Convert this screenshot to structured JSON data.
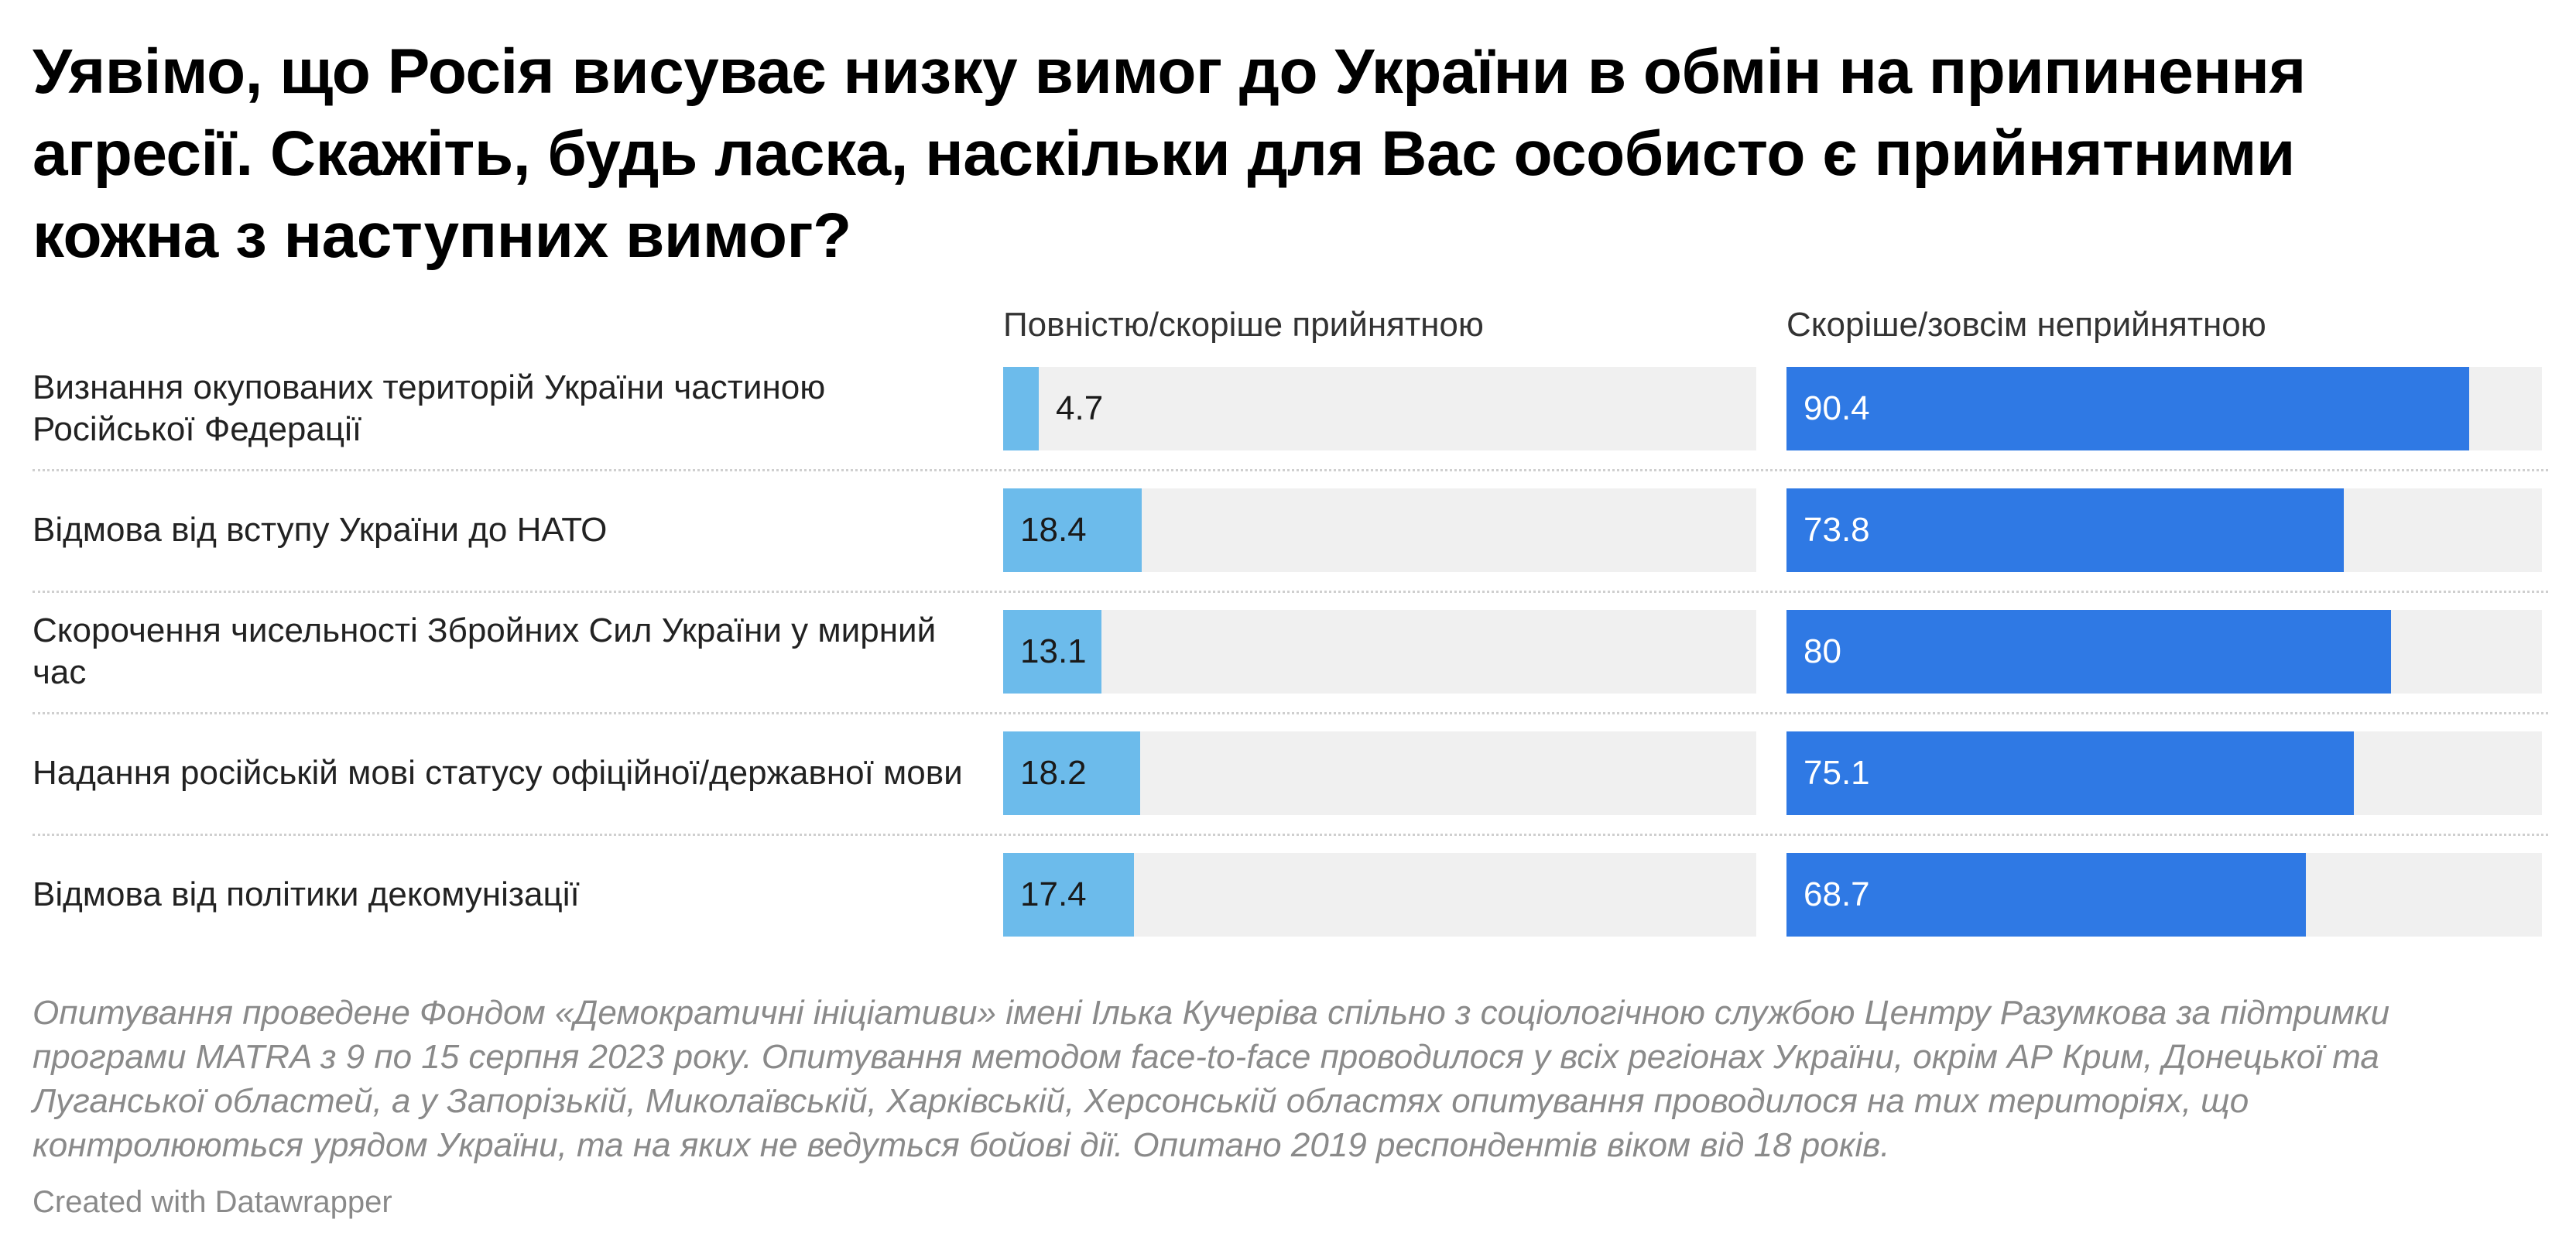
{
  "chart_data": {
    "type": "bar",
    "title": "Уявімо, що Росія висуває низку вимог до України в обмін на припинення агресії. Скажіть, будь ласка, наскільки для Вас особисто є прийнятними кожна з наступних вимог?",
    "categories": [
      "Визнання окупованих територій України частиною Російської Федерації",
      "Відмова від вступу України до НАТО",
      "Скорочення чисельності Збройних Сил України у мирний час",
      "Надання російській мові статусу офіційної/державної мови",
      "Відмова від політики декомунізації"
    ],
    "series": [
      {
        "name": "Повністю/скоріше прийнятною",
        "values": [
          4.7,
          18.4,
          13.1,
          18.2,
          17.4
        ],
        "color": "#6cbbeb"
      },
      {
        "name": "Скоріше/зовсім неприйнятною",
        "values": [
          90.4,
          73.8,
          80,
          75.1,
          68.7
        ],
        "color": "#2f79e4"
      }
    ],
    "value_labels": {
      "left": [
        "4.7",
        "18.4",
        "13.1",
        "18.2",
        "17.4"
      ],
      "right": [
        "90.4",
        "73.8",
        "80",
        "75.1",
        "68.7"
      ]
    },
    "xlim": [
      0,
      100
    ],
    "grid": false,
    "track_color": "#f0f0f0"
  },
  "notes": "Опитування проведене Фондом «Демократичні ініціативи» імені Ілька Кучеріва спільно з соціологічною службою Центру Разумкова за підтримки програми MATRA з 9 по 15 серпня 2023 року. Опитування методом face-to-face проводилося у всіх регіонах України, окрім АР Крим, Донецької та Луганської областей, а у Запорізькій, Миколаївській, Харківській, Херсонській областях опитування проводилося на тих територіях, що контролюються урядом України, та на яких не ведуться бойові дії. Опитано 2019 респондентів віком від 18 років.",
  "credit": "Created with Datawrapper"
}
